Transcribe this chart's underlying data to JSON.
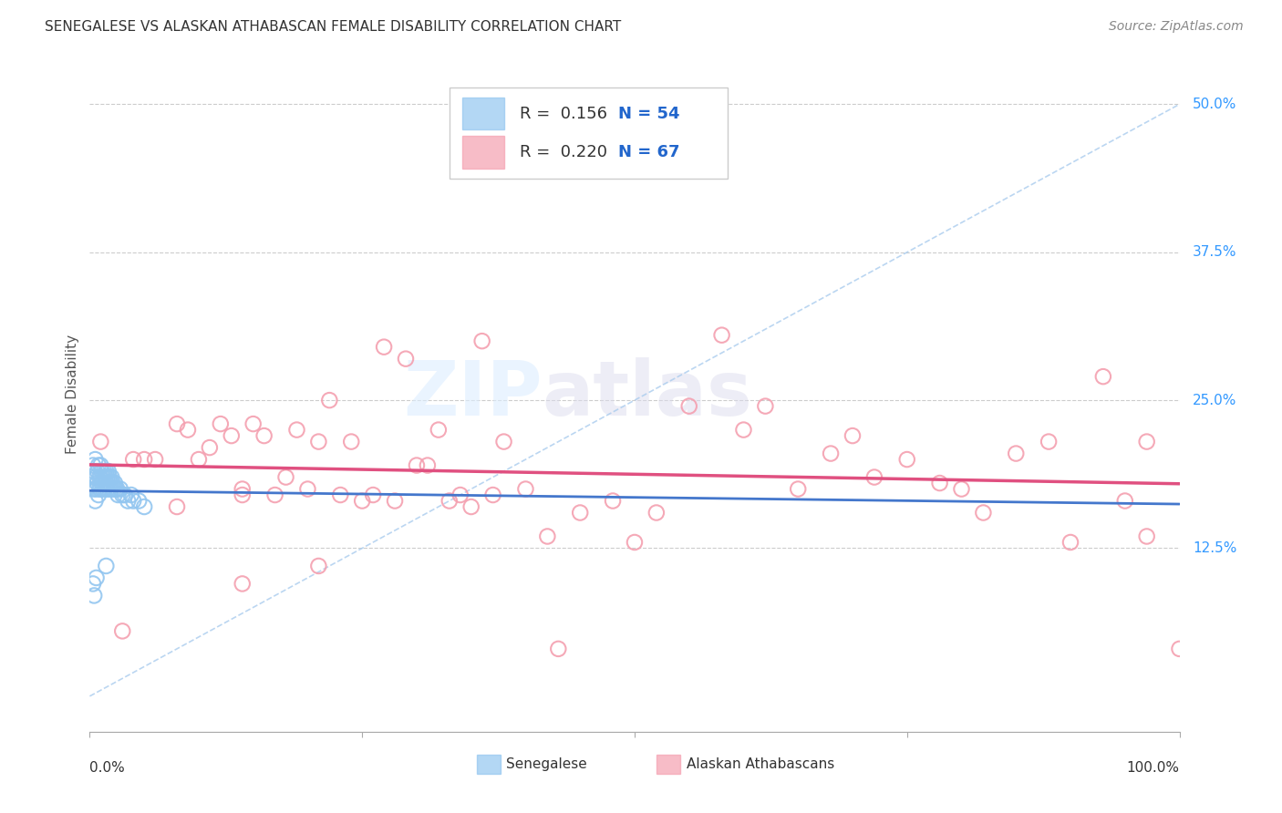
{
  "title": "SENEGALESE VS ALASKAN ATHABASCAN FEMALE DISABILITY CORRELATION CHART",
  "source": "Source: ZipAtlas.com",
  "ylabel": "Female Disability",
  "ytick_labels": [
    "50.0%",
    "37.5%",
    "25.0%",
    "12.5%"
  ],
  "ytick_values": [
    0.5,
    0.375,
    0.25,
    0.125
  ],
  "xlim": [
    0.0,
    1.0
  ],
  "ylim": [
    -0.03,
    0.54
  ],
  "color_blue": "#93C6F0",
  "color_pink": "#F4A0B0",
  "trendline_blue_color": "#4477CC",
  "trendline_pink_color": "#E05080",
  "diagonal_color": "#AACCEE",
  "senegalese_x": [
    0.002,
    0.003,
    0.004,
    0.004,
    0.005,
    0.005,
    0.006,
    0.006,
    0.007,
    0.007,
    0.008,
    0.008,
    0.009,
    0.009,
    0.01,
    0.01,
    0.01,
    0.011,
    0.011,
    0.012,
    0.012,
    0.013,
    0.013,
    0.014,
    0.014,
    0.015,
    0.015,
    0.016,
    0.016,
    0.017,
    0.017,
    0.018,
    0.018,
    0.019,
    0.02,
    0.02,
    0.021,
    0.022,
    0.023,
    0.024,
    0.025,
    0.026,
    0.028,
    0.03,
    0.032,
    0.035,
    0.038,
    0.04,
    0.045,
    0.05,
    0.003,
    0.004,
    0.006,
    0.015
  ],
  "senegalese_y": [
    0.185,
    0.195,
    0.19,
    0.175,
    0.2,
    0.165,
    0.185,
    0.175,
    0.19,
    0.18,
    0.195,
    0.17,
    0.185,
    0.175,
    0.195,
    0.185,
    0.175,
    0.19,
    0.18,
    0.185,
    0.175,
    0.19,
    0.18,
    0.185,
    0.175,
    0.19,
    0.18,
    0.185,
    0.175,
    0.19,
    0.18,
    0.185,
    0.175,
    0.18,
    0.185,
    0.175,
    0.18,
    0.175,
    0.18,
    0.175,
    0.175,
    0.17,
    0.175,
    0.17,
    0.17,
    0.165,
    0.17,
    0.165,
    0.165,
    0.16,
    0.095,
    0.085,
    0.1,
    0.11
  ],
  "athabascan_x": [
    0.01,
    0.03,
    0.04,
    0.05,
    0.06,
    0.08,
    0.09,
    0.1,
    0.11,
    0.12,
    0.13,
    0.14,
    0.14,
    0.15,
    0.16,
    0.17,
    0.18,
    0.19,
    0.2,
    0.21,
    0.22,
    0.23,
    0.24,
    0.25,
    0.26,
    0.27,
    0.28,
    0.29,
    0.3,
    0.31,
    0.32,
    0.33,
    0.34,
    0.35,
    0.36,
    0.37,
    0.38,
    0.4,
    0.42,
    0.45,
    0.48,
    0.5,
    0.52,
    0.55,
    0.58,
    0.6,
    0.62,
    0.65,
    0.68,
    0.7,
    0.72,
    0.75,
    0.78,
    0.8,
    0.82,
    0.85,
    0.88,
    0.9,
    0.93,
    0.95,
    0.97,
    1.0,
    0.08,
    0.14,
    0.21,
    0.43,
    0.97
  ],
  "athabascan_y": [
    0.215,
    0.055,
    0.2,
    0.2,
    0.2,
    0.23,
    0.225,
    0.2,
    0.21,
    0.23,
    0.22,
    0.17,
    0.175,
    0.23,
    0.22,
    0.17,
    0.185,
    0.225,
    0.175,
    0.215,
    0.25,
    0.17,
    0.215,
    0.165,
    0.17,
    0.295,
    0.165,
    0.285,
    0.195,
    0.195,
    0.225,
    0.165,
    0.17,
    0.16,
    0.3,
    0.17,
    0.215,
    0.175,
    0.135,
    0.155,
    0.165,
    0.13,
    0.155,
    0.245,
    0.305,
    0.225,
    0.245,
    0.175,
    0.205,
    0.22,
    0.185,
    0.2,
    0.18,
    0.175,
    0.155,
    0.205,
    0.215,
    0.13,
    0.27,
    0.165,
    0.215,
    0.04,
    0.16,
    0.095,
    0.11,
    0.04,
    0.135
  ]
}
